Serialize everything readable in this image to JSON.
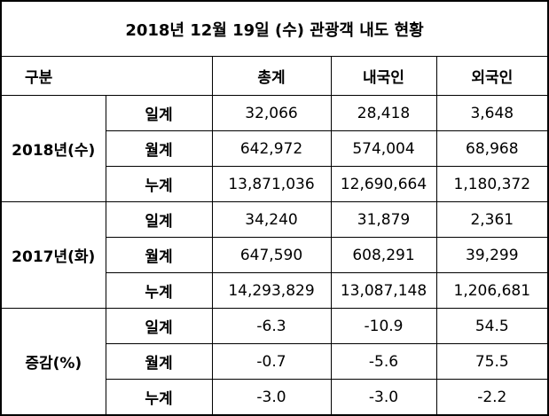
{
  "title": "2018년 12월 19일 (수) 관광객 내도 현황",
  "header": [
    "구분",
    "총계",
    "내국인",
    "외국인"
  ],
  "groups": [
    {
      "label": "2018년(수)",
      "rows": [
        {
          "label": "일계",
          "values": [
            "32,066",
            "28,418",
            "3,648"
          ]
        },
        {
          "label": "월계",
          "values": [
            "642,972",
            "574,004",
            "68,968"
          ]
        },
        {
          "label": "누계",
          "values": [
            "13,871,036",
            "12,690,664",
            "1,180,372"
          ]
        }
      ]
    },
    {
      "label": "2017년(화)",
      "rows": [
        {
          "label": "일계",
          "values": [
            "34,240",
            "31,879",
            "2,361"
          ]
        },
        {
          "label": "월계",
          "values": [
            "647,590",
            "608,291",
            "39,299"
          ]
        },
        {
          "label": "누계",
          "values": [
            "14,293,829",
            "13,087,148",
            "1,206,681"
          ]
        }
      ]
    },
    {
      "label": "증감(%)",
      "rows": [
        {
          "label": "일계",
          "values": [
            "-6.3",
            "-10.9",
            "54.5"
          ]
        },
        {
          "label": "월계",
          "values": [
            "-0.7",
            "-5.6",
            "75.5"
          ]
        },
        {
          "label": "누계",
          "values": [
            "-3.0",
            "-3.0",
            "-2.2"
          ]
        }
      ]
    }
  ]
}
